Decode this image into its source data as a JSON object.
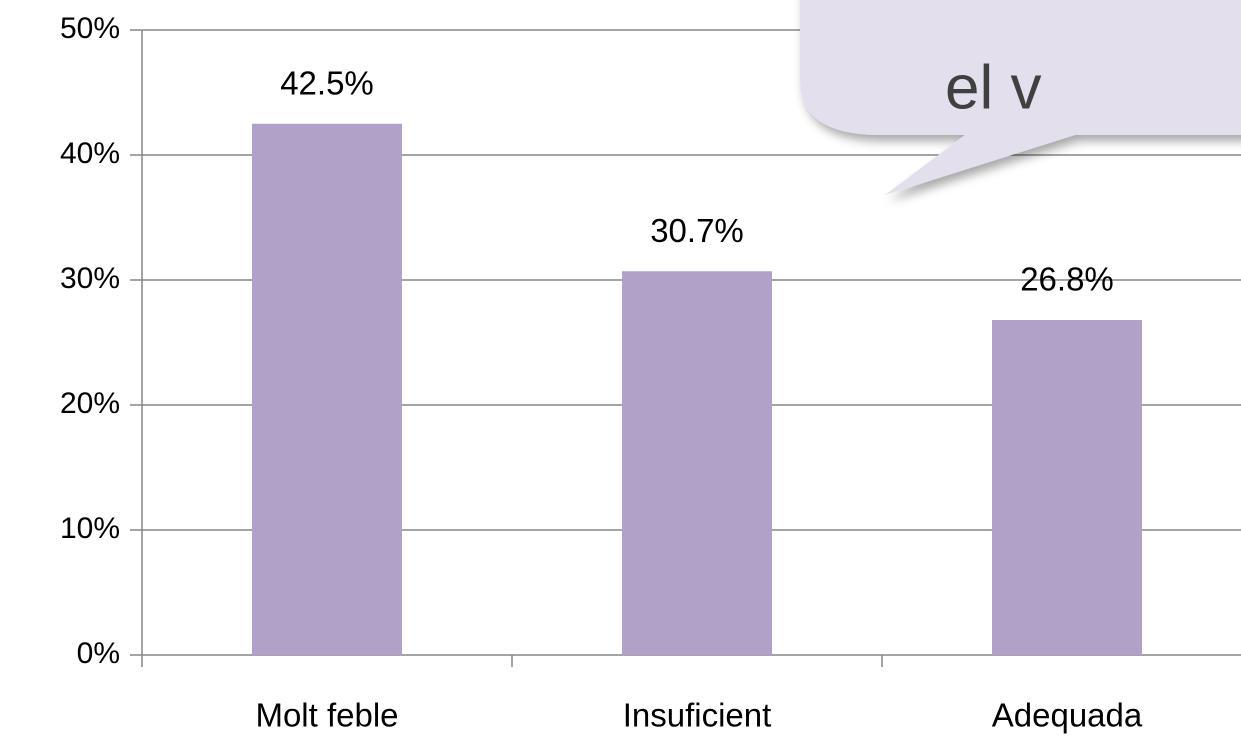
{
  "chart_data": {
    "type": "bar",
    "categories": [
      "Molt feble",
      "Insuficient",
      "Adequada"
    ],
    "values": [
      42.5,
      30.7,
      26.8
    ],
    "value_labels": [
      "42.5%",
      "30.7%",
      "26.8%"
    ],
    "color": "#b1a0c7",
    "ylim": [
      0,
      50
    ],
    "yticks": [
      {
        "value": 0,
        "label": "0%"
      },
      {
        "value": 10,
        "label": "10%"
      },
      {
        "value": 20,
        "label": "20%"
      },
      {
        "value": 30,
        "label": "30%"
      },
      {
        "value": 40,
        "label": "40%"
      },
      {
        "value": 50,
        "label": "50%"
      }
    ],
    "grid": true,
    "annotation": "el v"
  }
}
